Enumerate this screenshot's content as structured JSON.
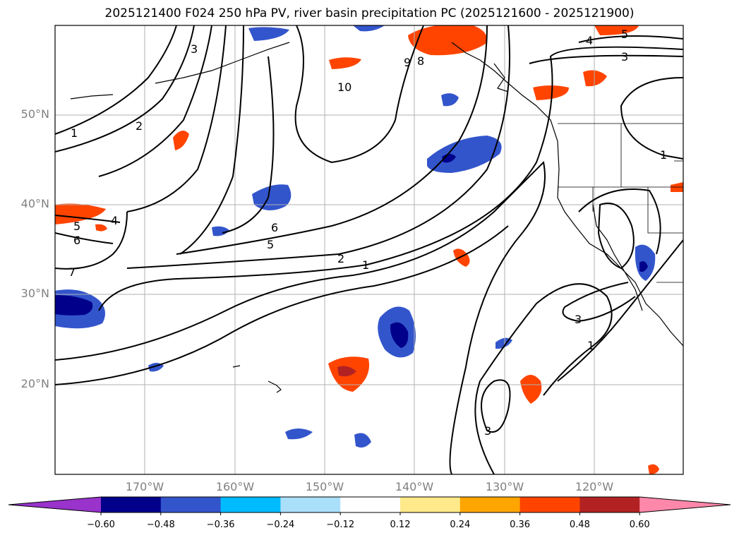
{
  "title": "2025121400 F024 250 hPa PV, river basin precipitation PC (2025121600 - 2025121900)",
  "lat_labels": [
    "50°N",
    "40°N",
    "30°N",
    "20°N"
  ],
  "lon_labels": [
    "170°W",
    "160°W",
    "150°W",
    "140°W",
    "130°W",
    "120°W"
  ],
  "colorbar": {
    "tick_labels": [
      "−0.60",
      "−0.48",
      "−0.36",
      "−0.24",
      "−0.12",
      "0.12",
      "0.24",
      "0.36",
      "0.48",
      "0.60"
    ],
    "colors": [
      "#9933cc",
      "#00008b",
      "#3355cc",
      "#00bbff",
      "#aadffa",
      "#ffffff",
      "#ffe98a",
      "#ffa500",
      "#ff4400",
      "#b22222",
      "#ff88aa"
    ]
  },
  "contour_labels": [
    "1",
    "2",
    "3",
    "4",
    "5",
    "6",
    "7",
    "8",
    "9",
    "10"
  ],
  "colors": {
    "contour": "#000000",
    "grid": "#b0b0b0",
    "coast": "#000000"
  }
}
